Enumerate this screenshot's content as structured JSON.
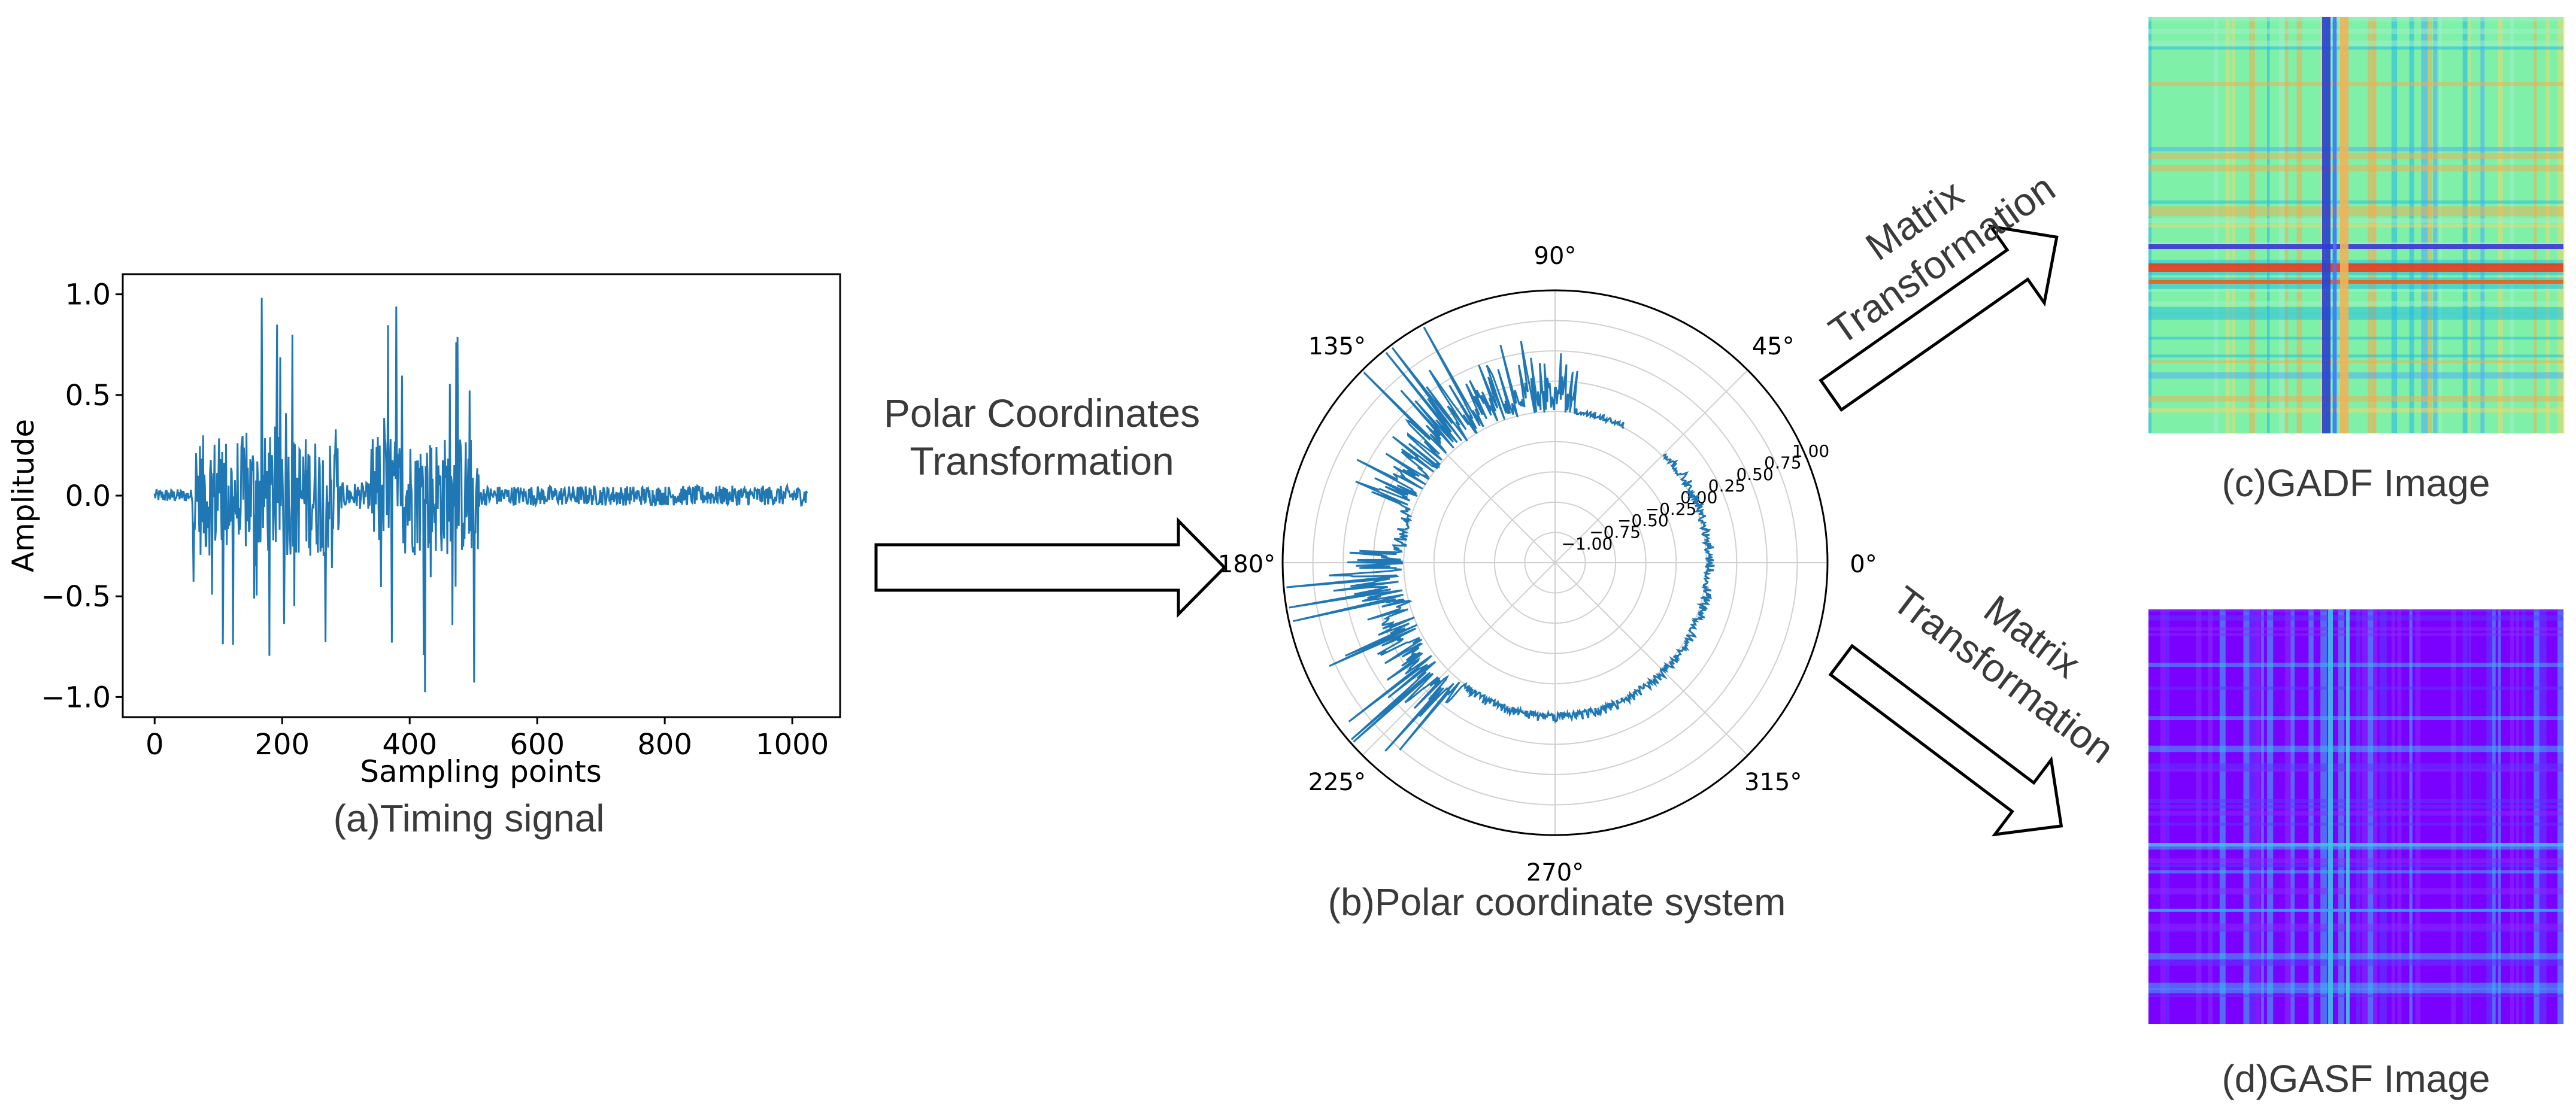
{
  "panel_a": {
    "caption": "(a)Timing signal",
    "xlabel": "Sampling points",
    "ylabel": "Amplitude",
    "xticks": [
      "0",
      "200",
      "400",
      "600",
      "800",
      "1000"
    ],
    "yticks": [
      "1.0",
      "0.5",
      "0.0",
      "−0.5",
      "−1.0"
    ],
    "line_color": "#1f77b4"
  },
  "arrow_polar": {
    "label_line1": "Polar Coordinates",
    "label_line2": "Transformation"
  },
  "panel_b": {
    "caption": "(b)Polar coordinate system",
    "angle_labels": [
      "0°",
      "45°",
      "90°",
      "135°",
      "180°",
      "225°",
      "270°",
      "315°"
    ],
    "radial_labels": [
      "−1.00",
      "−0.75",
      "−0.50",
      "−0.25",
      "0.00",
      "0.25",
      "0.50",
      "0.75",
      "1.00"
    ],
    "line_color": "#1f77b4"
  },
  "arrow_top": {
    "label_line1": "Matrix",
    "label_line2": "Transformation"
  },
  "arrow_bottom": {
    "label_line1": "Matrix",
    "label_line2": "Transformation"
  },
  "panel_c": {
    "caption": "(c)GADF Image",
    "base_color": "#7ef0a8"
  },
  "panel_d": {
    "caption": "(d)GASF Image",
    "base_color": "#7a00ff"
  }
}
